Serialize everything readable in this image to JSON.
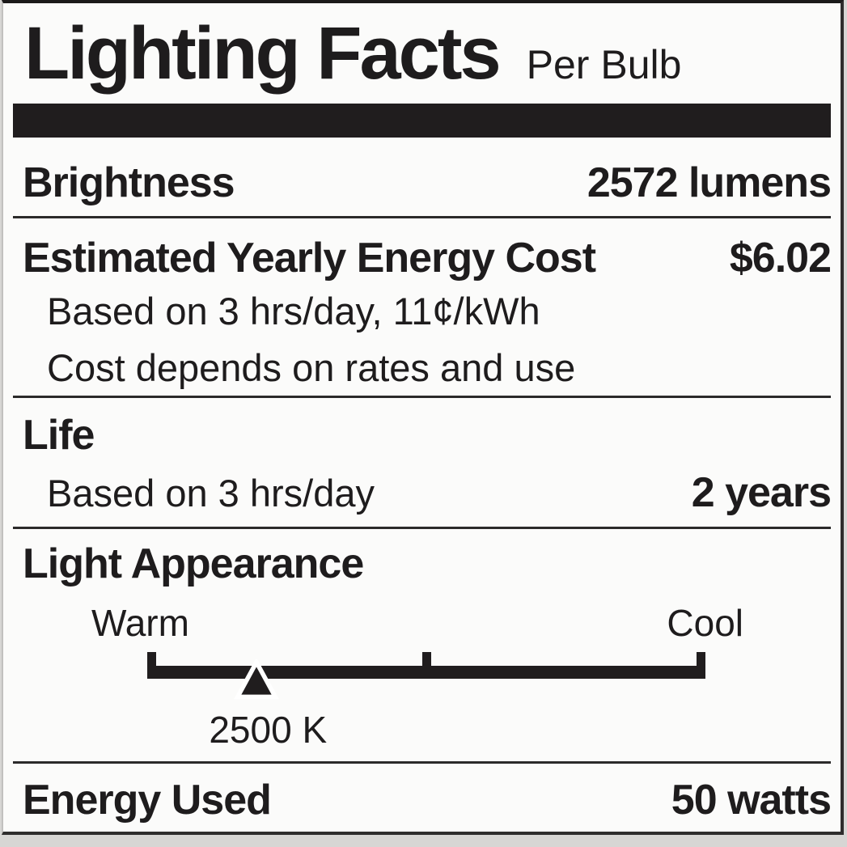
{
  "label": {
    "title": "Lighting Facts",
    "subtitle": "Per Bulb",
    "brightness": {
      "name": "Brightness",
      "value": "2572 lumens"
    },
    "energy_cost": {
      "name": "Estimated Yearly Energy Cost",
      "value": "$6.02",
      "notes": [
        "Based on 3 hrs/day, 11¢/kWh",
        "Cost depends on rates and use"
      ]
    },
    "life": {
      "name": "Life",
      "basis": "Based on 3 hrs/day",
      "value": "2 years"
    },
    "light_appearance": {
      "name": "Light Appearance",
      "warm_label": "Warm",
      "cool_label": "Cool",
      "value": "2500 K",
      "marker_percent": 19.6
    },
    "energy_used": {
      "name": "Energy Used",
      "value": "50 watts"
    },
    "colors": {
      "ink": "#1e1c1d",
      "bar": "#201d1e",
      "background": "#fbfbfa"
    }
  }
}
